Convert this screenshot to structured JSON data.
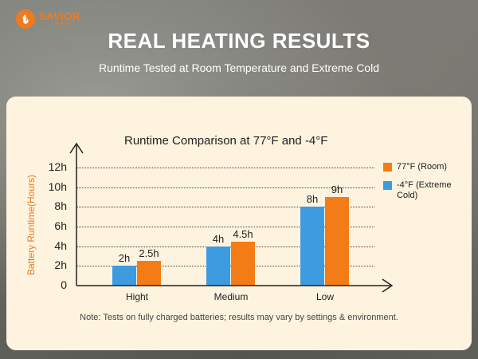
{
  "brand": {
    "name": "SAVIOR",
    "sub": "HEAT",
    "color": "#f07a1e"
  },
  "header": {
    "title": "REAL HEATING RESULTS",
    "subtitle": "Runtime Tested at Room Temperature and Extreme Cold"
  },
  "chart_data": {
    "type": "bar",
    "title": "Runtime Comparison at 77°F and -4°F",
    "ylabel": "Battery Runtime(Hours)",
    "xlabel": "",
    "ylim": [
      0,
      12
    ],
    "yticks": [
      "0",
      "2h",
      "4h",
      "6h",
      "8h",
      "10h",
      "12h"
    ],
    "ytick_values": [
      0,
      2,
      4,
      6,
      8,
      10,
      12
    ],
    "categories": [
      "Hight",
      "Medium",
      "Low"
    ],
    "series": [
      {
        "name": "-4°F (Extreme Cold)",
        "color": "#3d9be0",
        "values": [
          2,
          4,
          8
        ],
        "labels": [
          "2h",
          "4h",
          "8h"
        ]
      },
      {
        "name": "77°F (Room)",
        "color": "#f47c17",
        "values": [
          2.5,
          4.5,
          9
        ],
        "labels": [
          "2.5h",
          "4.5h",
          "9h"
        ]
      }
    ],
    "legend": {
      "placement": "right",
      "order": [
        1,
        0
      ]
    },
    "grid": true,
    "gridline_style": "dotted"
  },
  "note": "Note: Tests on fully charged batteries; results may vary by settings & environment."
}
